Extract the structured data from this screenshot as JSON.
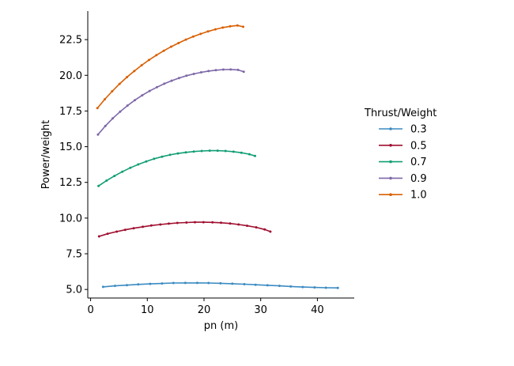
{
  "chart_data": {
    "type": "line",
    "title": "",
    "xlabel": "pn (m)",
    "ylabel": "Power/weight",
    "xlim": [
      -0.5,
      46.5
    ],
    "ylim": [
      4.4,
      24.5
    ],
    "xticks": [
      0,
      10,
      20,
      30,
      40
    ],
    "yticks": [
      5.0,
      7.5,
      10.0,
      12.5,
      15.0,
      17.5,
      20.0,
      22.5
    ],
    "grid": false,
    "legend": {
      "title": "Thrust/Weight",
      "placement": "right"
    },
    "series": [
      {
        "name": "0.3",
        "color": "#3b8bc2",
        "x": [
          2.2,
          4.3,
          6.4,
          8.4,
          10.5,
          12.6,
          14.6,
          16.7,
          18.8,
          20.8,
          22.9,
          25.0,
          27.1,
          29.1,
          31.2,
          33.3,
          35.3,
          37.4,
          39.5,
          41.5,
          43.6
        ],
        "y": [
          5.18,
          5.25,
          5.3,
          5.35,
          5.39,
          5.42,
          5.45,
          5.46,
          5.46,
          5.45,
          5.43,
          5.4,
          5.37,
          5.33,
          5.29,
          5.25,
          5.21,
          5.17,
          5.14,
          5.12,
          5.11
        ]
      },
      {
        "name": "0.5",
        "color": "#a00f2f",
        "x": [
          1.5,
          3.0,
          4.6,
          6.1,
          7.6,
          9.2,
          10.7,
          12.3,
          13.8,
          15.3,
          16.9,
          18.4,
          19.9,
          21.5,
          23.0,
          24.6,
          26.1,
          27.6,
          29.2,
          30.7,
          31.7
        ],
        "y": [
          8.72,
          8.9,
          9.05,
          9.18,
          9.29,
          9.39,
          9.48,
          9.55,
          9.61,
          9.66,
          9.69,
          9.71,
          9.71,
          9.7,
          9.67,
          9.62,
          9.55,
          9.46,
          9.35,
          9.2,
          9.05
        ]
      },
      {
        "name": "0.7",
        "color": "#119e74",
        "x": [
          1.4,
          2.8,
          4.2,
          5.6,
          7.0,
          8.4,
          9.8,
          11.2,
          12.6,
          14.0,
          15.4,
          16.8,
          18.2,
          19.6,
          21.0,
          22.4,
          23.8,
          25.2,
          26.6,
          28.0,
          29.0
        ],
        "y": [
          12.25,
          12.62,
          12.95,
          13.25,
          13.52,
          13.76,
          13.97,
          14.15,
          14.3,
          14.43,
          14.53,
          14.6,
          14.66,
          14.7,
          14.72,
          14.72,
          14.7,
          14.65,
          14.58,
          14.47,
          14.35
        ]
      },
      {
        "name": "0.9",
        "color": "#7d67a8",
        "x": [
          1.3,
          2.6,
          3.9,
          5.2,
          6.5,
          7.8,
          9.1,
          10.4,
          11.7,
          13.0,
          14.3,
          15.6,
          16.9,
          18.2,
          19.5,
          20.8,
          22.1,
          23.4,
          24.7,
          26.0,
          27.0
        ],
        "y": [
          15.85,
          16.45,
          16.98,
          17.45,
          17.88,
          18.26,
          18.6,
          18.9,
          19.17,
          19.41,
          19.62,
          19.81,
          19.97,
          20.1,
          20.21,
          20.3,
          20.36,
          20.4,
          20.41,
          20.38,
          20.25
        ]
      },
      {
        "name": "1.0",
        "color": "#d95f02",
        "x": [
          1.2,
          2.5,
          3.8,
          5.1,
          6.4,
          7.7,
          9.0,
          10.3,
          11.6,
          12.9,
          14.2,
          15.5,
          16.8,
          18.1,
          19.4,
          20.7,
          22.0,
          23.3,
          24.6,
          25.9,
          26.9
        ],
        "y": [
          17.7,
          18.32,
          18.88,
          19.4,
          19.87,
          20.3,
          20.7,
          21.07,
          21.41,
          21.72,
          22.0,
          22.26,
          22.5,
          22.71,
          22.9,
          23.07,
          23.22,
          23.34,
          23.43,
          23.49,
          23.4
        ]
      }
    ]
  }
}
